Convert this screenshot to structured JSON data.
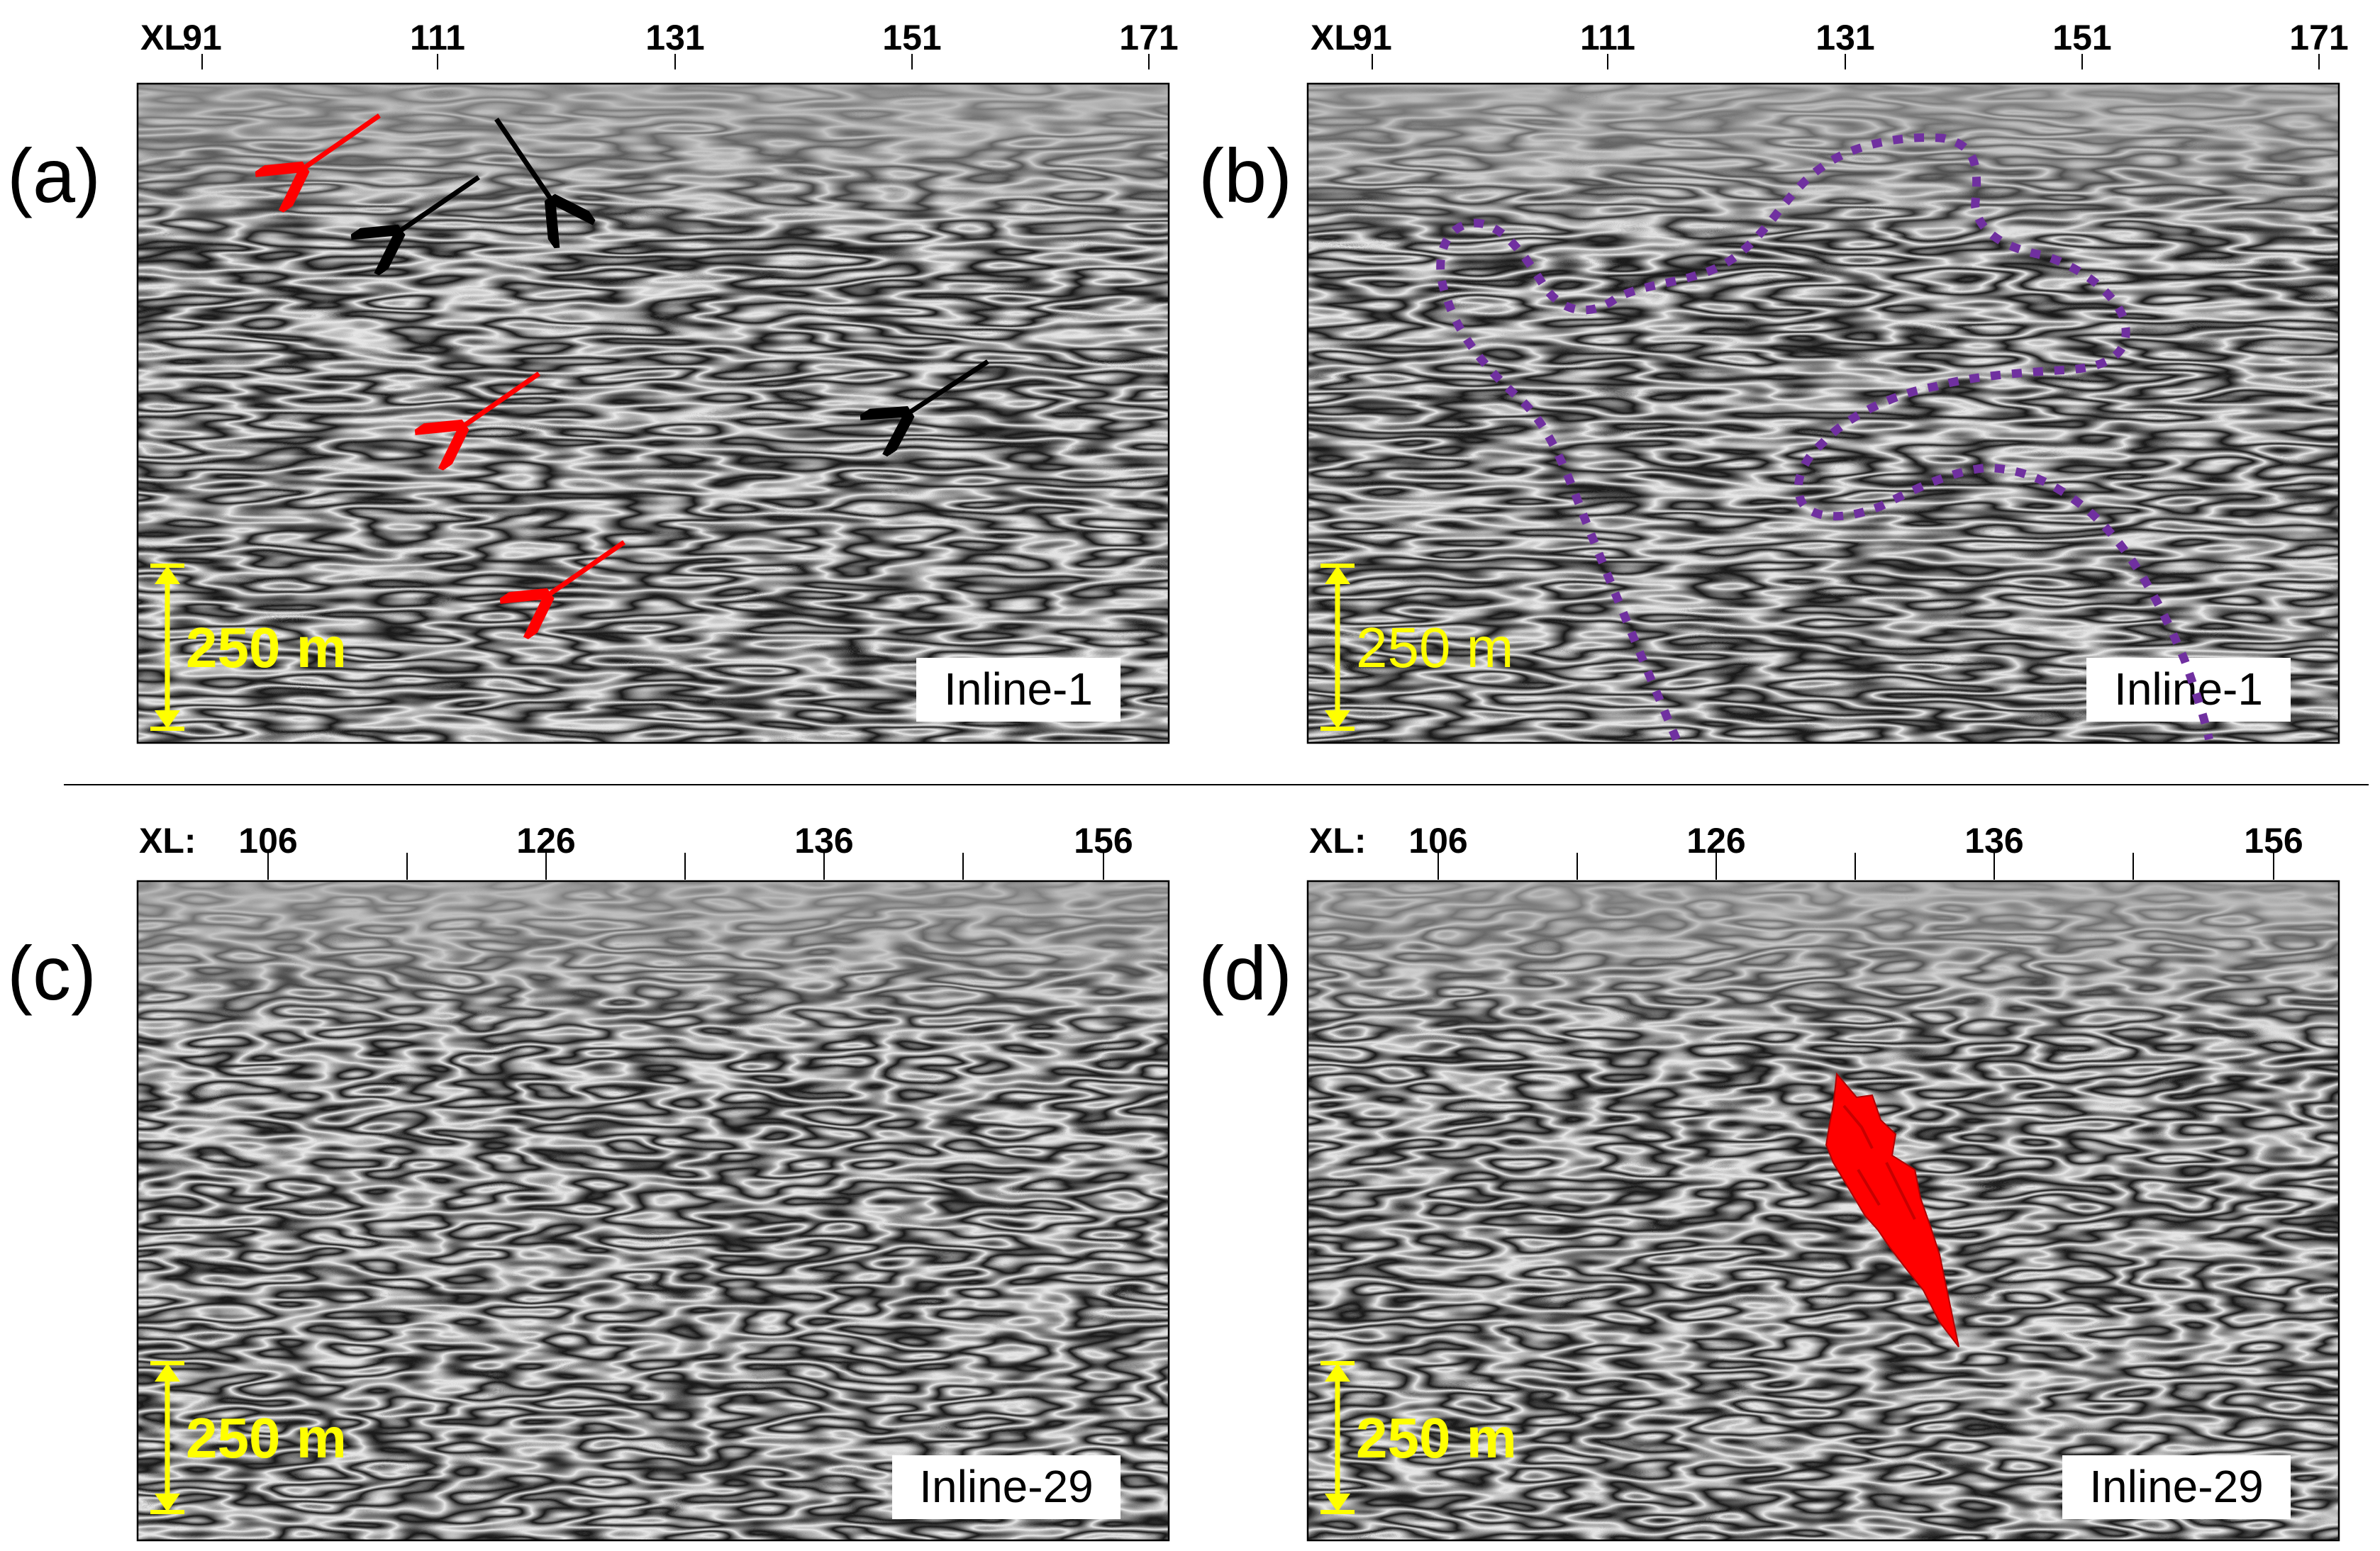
{
  "figure": {
    "colors": {
      "background": "#ffffff",
      "seismic_light": "#ffffff",
      "seismic_dark": "#000000",
      "scale_bar": "#ffff00",
      "red_arrow": "#ff0000",
      "black_arrow": "#000000",
      "dashed_outline": "#7030a0",
      "red_body": "#ff0000",
      "frame": "#000000"
    },
    "panels": [
      {
        "id": "a",
        "label": "(a)",
        "axis_prefix": "XL",
        "ticks": [
          "91",
          "111",
          "131",
          "151",
          "171"
        ],
        "scale_bar_label": "250 m",
        "inline_label": "Inline-1",
        "annotations": [
          "red-arrows",
          "black-arrows"
        ]
      },
      {
        "id": "b",
        "label": "(b)",
        "axis_prefix": "XL",
        "ticks": [
          "91",
          "111",
          "131",
          "151",
          "171"
        ],
        "scale_bar_label": "250 m",
        "inline_label": "Inline-1",
        "annotations": [
          "dashed-outline"
        ]
      },
      {
        "id": "c",
        "label": "(c)",
        "axis_prefix": "XL:",
        "ticks": [
          "106",
          "126",
          "136",
          "156"
        ],
        "scale_bar_label": "250 m",
        "inline_label": "Inline-29",
        "annotations": []
      },
      {
        "id": "d",
        "label": "(d)",
        "axis_prefix": "XL:",
        "ticks": [
          "106",
          "126",
          "136",
          "156"
        ],
        "scale_bar_label": "250 m",
        "inline_label": "Inline-29",
        "annotations": [
          "red-body"
        ]
      }
    ]
  }
}
